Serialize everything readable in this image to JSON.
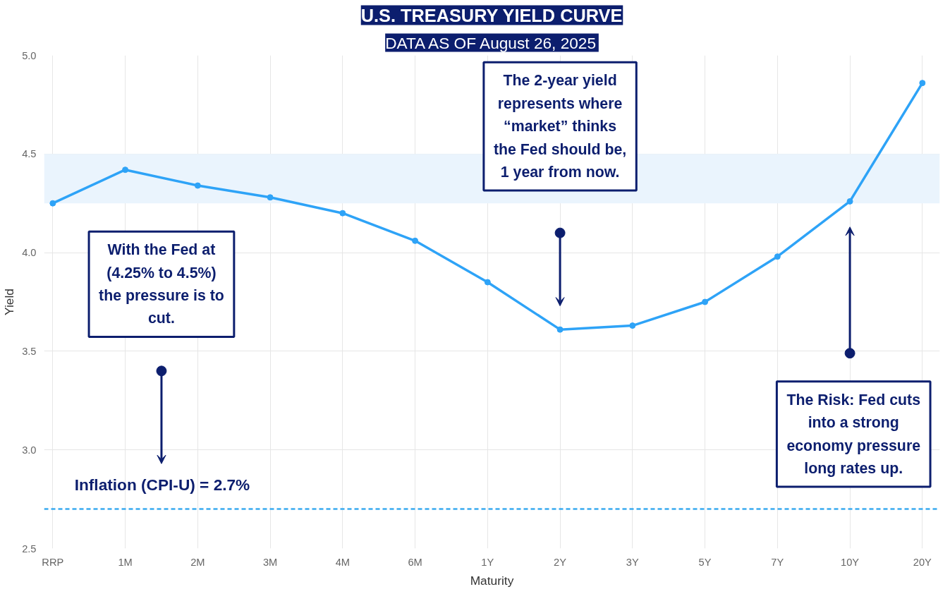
{
  "chart_data": {
    "type": "line",
    "title": "U.S. TREASURY YIELD CURVE",
    "subtitle": "DATA AS OF August 26, 2025",
    "xlabel": "Maturity",
    "ylabel": "Yield",
    "categories": [
      "RRP",
      "1M",
      "2M",
      "3M",
      "4M",
      "6M",
      "1Y",
      "2Y",
      "3Y",
      "5Y",
      "7Y",
      "10Y",
      "20Y"
    ],
    "series": [
      {
        "color": "#2ea3f7",
        "values": [
          4.25,
          4.42,
          4.34,
          4.28,
          4.2,
          4.06,
          3.85,
          3.61,
          3.63,
          3.75,
          3.98,
          4.26,
          4.86
        ]
      }
    ],
    "ylim": [
      2.5,
      5.0
    ],
    "yticks": [
      {
        "value": 2.5,
        "label": "2.5"
      },
      {
        "value": 3.0,
        "label": "3.0"
      },
      {
        "value": 3.5,
        "label": "3.5"
      },
      {
        "value": 4.0,
        "label": "4.0"
      },
      {
        "value": 4.5,
        "label": "4.5"
      },
      {
        "value": 5.0,
        "label": "5.0"
      }
    ],
    "marker": "circle",
    "line_style": "solid",
    "grid": true,
    "ref_lines": [
      {
        "axis": "y",
        "value": 2.7,
        "label": "Inflation (CPI-U) = 2.7%",
        "color": "#3aaaf0",
        "line_style": "dashed"
      }
    ],
    "bands": [
      {
        "axis": "y",
        "from": 4.25,
        "to": 4.5,
        "color": "#eaf4fd"
      }
    ],
    "annotations": [
      "With the Fed at\n(4.25% to 4.5%)\nthe pressure is to\ncut.",
      "The 2-year yield\nrepresents where\n“market” thinks\nthe Fed should be,\n1 year from now.",
      "The Risk: Fed cuts\ninto a strong\neconomy pressure\nlong rates up."
    ]
  }
}
